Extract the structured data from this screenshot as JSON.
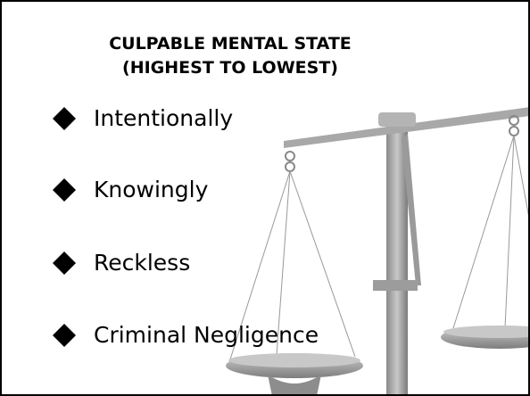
{
  "title": [
    "CULPABLE MENTAL STATE",
    "(HIGHEST TO LOWEST)"
  ],
  "items": [
    "Intentionally",
    "Knowingly",
    "Reckless",
    "Criminal Negligence"
  ]
}
